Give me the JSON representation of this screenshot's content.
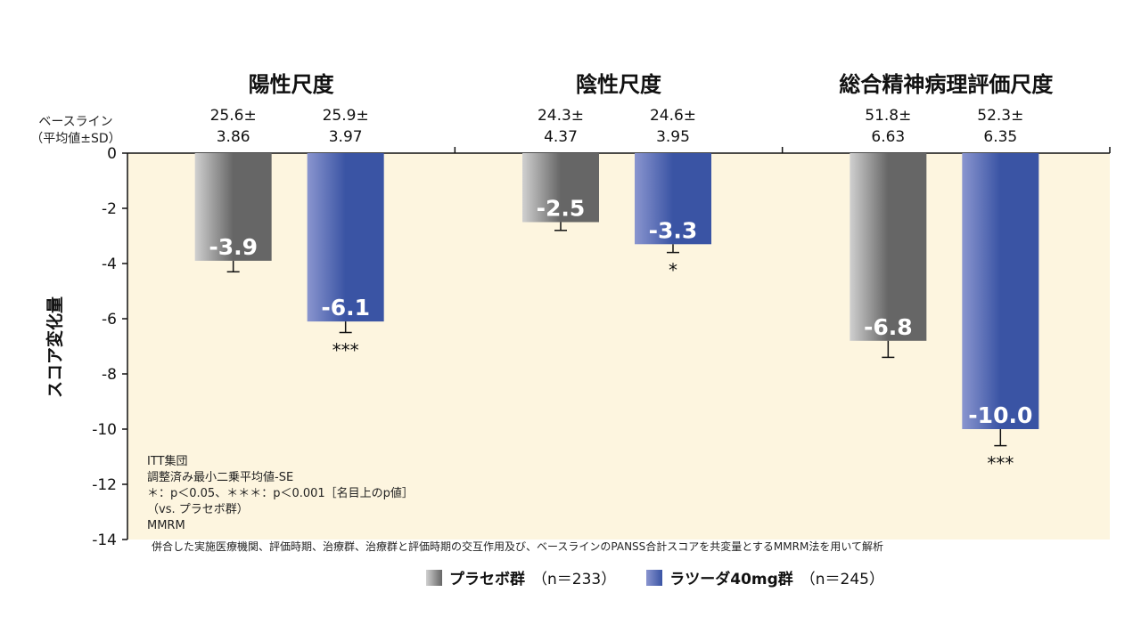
{
  "chart_data": {
    "type": "bar",
    "ylabel": "スコア変化量",
    "ylim": [
      -14,
      0
    ],
    "yticks": [
      0,
      -2,
      -4,
      -6,
      -8,
      -10,
      -12,
      -14
    ],
    "baseline_header": [
      "ベースライン",
      "（平均値±SD）"
    ],
    "series": [
      {
        "name": "プラセボ群",
        "n_label": "（n＝233）",
        "color": "#666666",
        "color_light": "#d0d0d0"
      },
      {
        "name": "ラツーダ40mg群",
        "n_label": "（n＝245）",
        "color": "#3a54a4",
        "color_light": "#8a95cf"
      }
    ],
    "groups": [
      {
        "title": "陽性尺度",
        "bars": [
          {
            "value": -3.9,
            "label": "-3.9",
            "err": 0.4,
            "sig": "",
            "baseline": [
              "25.6±",
              "3.86"
            ]
          },
          {
            "value": -6.1,
            "label": "-6.1",
            "err": 0.4,
            "sig": "***",
            "baseline": [
              "25.9±",
              "3.97"
            ]
          }
        ]
      },
      {
        "title": "陰性尺度",
        "bars": [
          {
            "value": -2.5,
            "label": "-2.5",
            "err": 0.3,
            "sig": "",
            "baseline": [
              "24.3±",
              "4.37"
            ]
          },
          {
            "value": -3.3,
            "label": "-3.3",
            "err": 0.3,
            "sig": "*",
            "baseline": [
              "24.6±",
              "3.95"
            ]
          }
        ]
      },
      {
        "title": "総合精神病理評価尺度",
        "bars": [
          {
            "value": -6.8,
            "label": "-6.8",
            "err": 0.6,
            "sig": "",
            "baseline": [
              "51.8±",
              "6.63"
            ]
          },
          {
            "value": -10.0,
            "label": "-10.0",
            "err": 0.6,
            "sig": "***",
            "baseline": [
              "52.3±",
              "6.35"
            ]
          }
        ]
      }
    ],
    "notes": [
      "ITT集団",
      "調整済み最小二乗平均値-SE",
      "＊：p＜0.05、＊＊＊：p＜0.001［名目上のp値］",
      "（vs. プラセボ群）",
      "MMRM"
    ],
    "footnote": "併合した実施医療機関、評価時期、治療群、治療群と評価時期の交互作用及び、ベースラインのPANSS合計スコアを共変量とするMMRM法を用いて解析"
  }
}
